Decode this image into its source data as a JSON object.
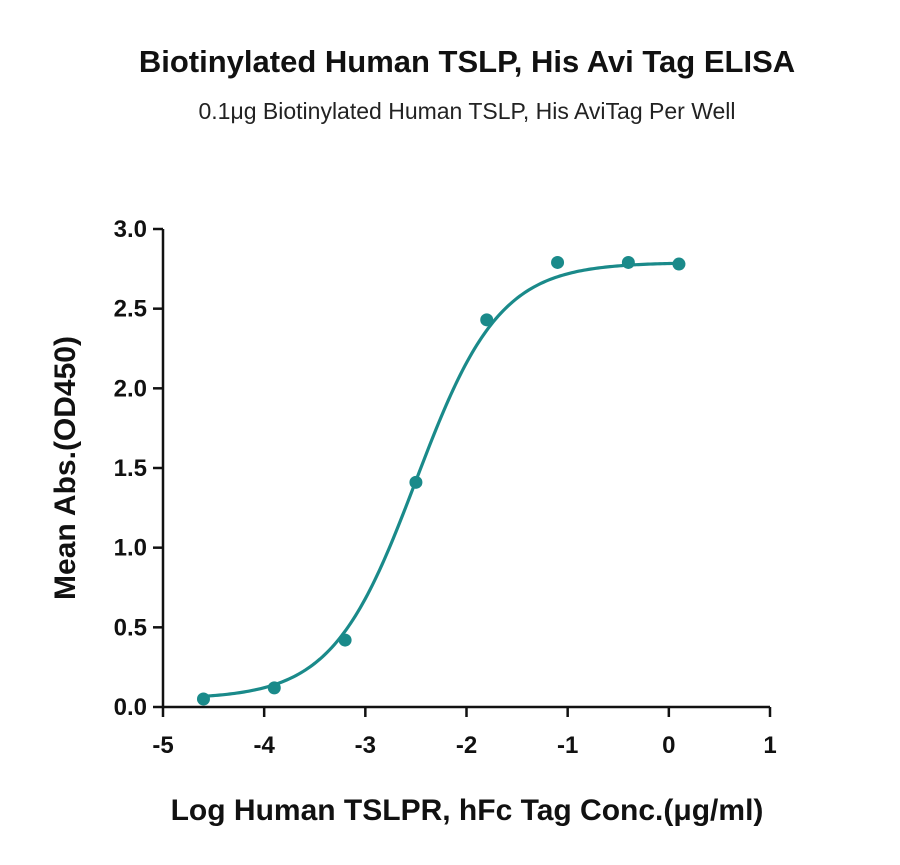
{
  "chart_data": {
    "type": "scatter",
    "title": "Biotinylated Human TSLP, His Avi Tag ELISA",
    "subtitle": "0.1μg Biotinylated Human TSLP, His AviTag Per Well",
    "xlabel": "Log Human TSLPR, hFc Tag Conc.(μg/ml)",
    "ylabel": "Mean Abs.(OD450)",
    "xlim": [
      -5,
      1
    ],
    "ylim": [
      0,
      3.0
    ],
    "x_ticks": [
      "-5",
      "-4",
      "-3",
      "-2",
      "-1",
      "0",
      "1"
    ],
    "y_ticks": [
      "0.0",
      "0.5",
      "1.0",
      "1.5",
      "2.0",
      "2.5",
      "3.0"
    ],
    "grid": false,
    "series": [
      {
        "color": "#1a8a8a",
        "x": [
          -4.6,
          -3.9,
          -3.2,
          -2.5,
          -1.8,
          -1.1,
          -0.4,
          0.1
        ],
        "y": [
          0.05,
          0.12,
          0.42,
          1.41,
          2.43,
          2.79,
          2.79,
          2.78
        ],
        "fit_curve": "sigmoidal"
      }
    ]
  }
}
